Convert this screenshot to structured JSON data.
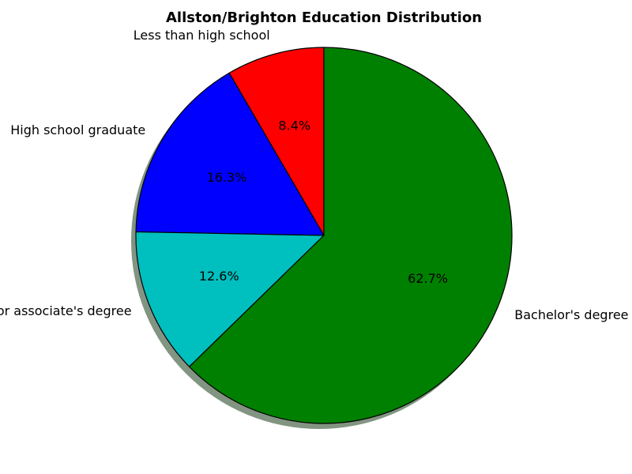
{
  "chart_data": {
    "type": "pie",
    "title": "Allston/Brighton Education Distribution",
    "slices": [
      {
        "label": "Less than high school",
        "value": 8.4,
        "pct_label": "8.4%",
        "color": "#ff0000"
      },
      {
        "label": "High school graduate",
        "value": 16.3,
        "pct_label": "16.3%",
        "color": "#0000ff"
      },
      {
        "label": "Some college or associate's degree",
        "value": 12.6,
        "pct_label": "12.6%",
        "color": "#00bfbf"
      },
      {
        "label": "Bachelor's degree or higher",
        "value": 62.7,
        "pct_label": "62.7%",
        "color": "#008000"
      }
    ],
    "start_angle_deg": 90,
    "direction": "counterclockwise",
    "shadow": true,
    "edge_color": "#000000"
  }
}
